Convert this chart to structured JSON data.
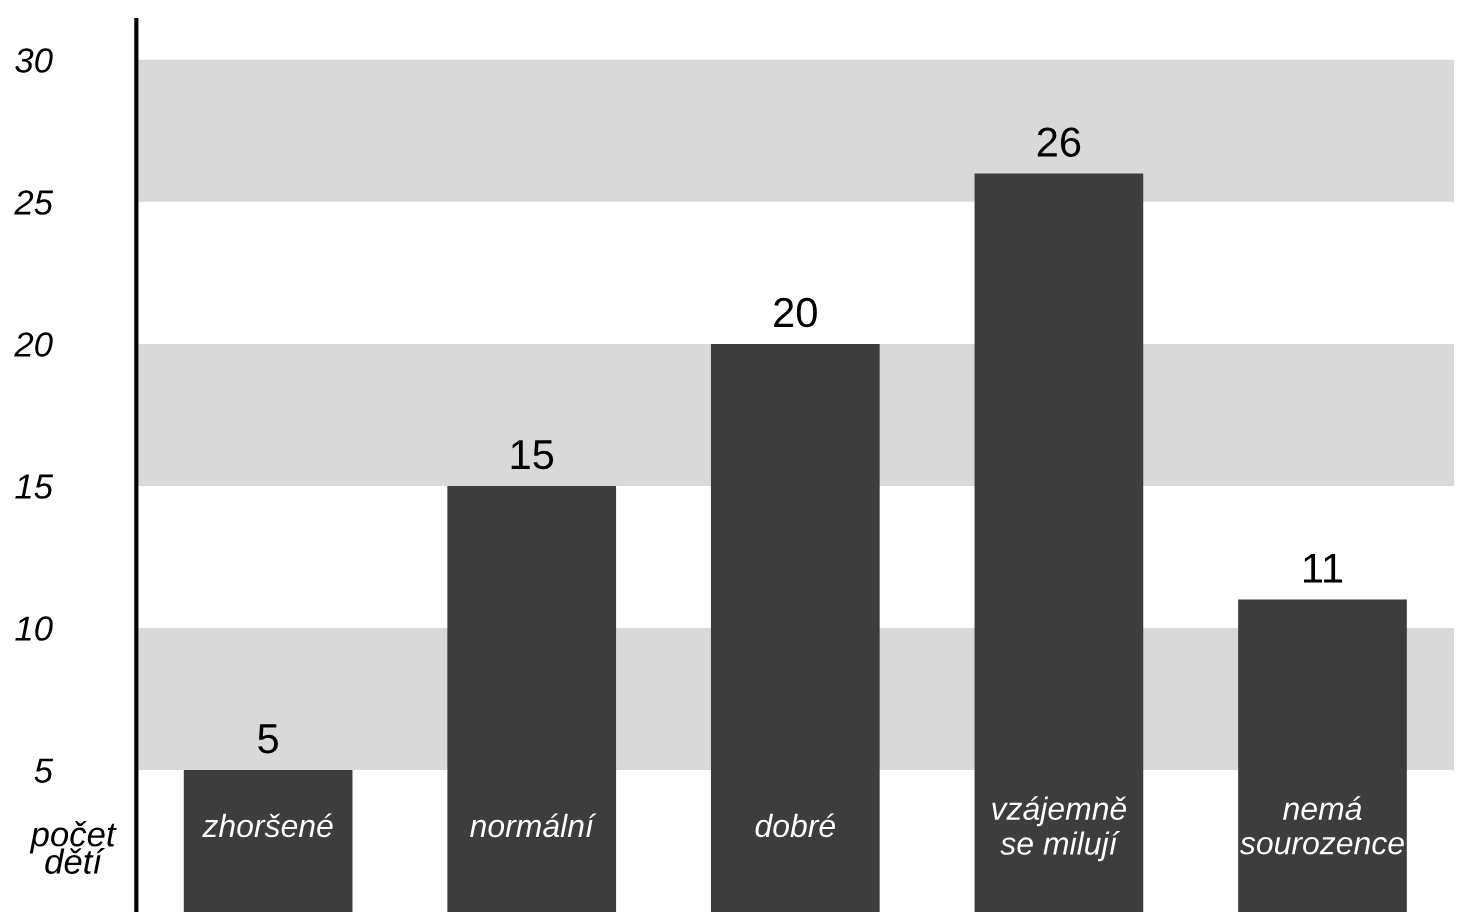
{
  "chart_data": {
    "type": "bar",
    "ylabel": "počet\ndětí",
    "categories": [
      "zhoršené",
      "normální",
      "dobré",
      "vzájemně\nse milují",
      "nemá\nsourozence"
    ],
    "values": [
      5,
      15,
      20,
      26,
      11
    ],
    "color": "#3d3d3d",
    "data_labels": true,
    "ylim": [
      0,
      31.4
    ],
    "yticks": [
      5,
      10,
      15,
      20,
      25,
      30
    ],
    "grid": false,
    "legend": false,
    "bands": [
      {
        "axis": "y",
        "from": 5,
        "to": 10,
        "color": "#d9d9d9"
      },
      {
        "axis": "y",
        "from": 15,
        "to": 20,
        "color": "#d9d9d9"
      },
      {
        "axis": "y",
        "from": 25,
        "to": 30,
        "color": "#d9d9d9"
      }
    ]
  }
}
